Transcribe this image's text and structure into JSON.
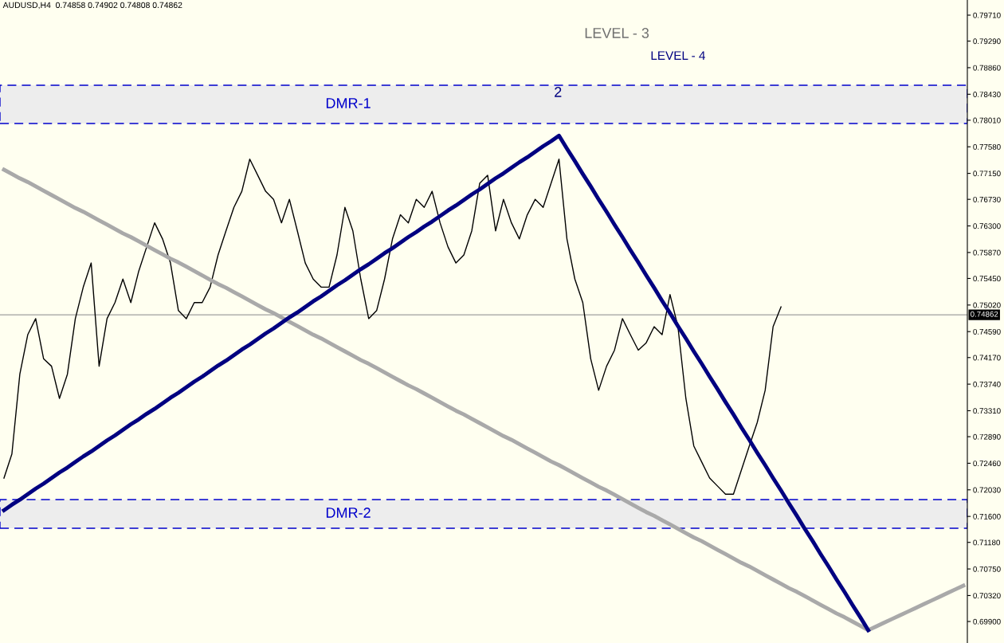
{
  "chart_data": {
    "type": "line",
    "title": "AUDUSD,H4  0.74858 0.74902 0.74808 0.74862",
    "categories": [
      null,
      null,
      null,
      null,
      null,
      null,
      null,
      null,
      null,
      null,
      null,
      null,
      null,
      null,
      null,
      null,
      null,
      null,
      null,
      null,
      null,
      null,
      null,
      null,
      null,
      null,
      null,
      null,
      null,
      null,
      null,
      null,
      null,
      null,
      null,
      null,
      null,
      null,
      null,
      null,
      null,
      null,
      null,
      null,
      null,
      null,
      null,
      null,
      null,
      null,
      null,
      null,
      null,
      null,
      null,
      null,
      null,
      null,
      null,
      null,
      null,
      null,
      null,
      null,
      null,
      null,
      null,
      null,
      null,
      null,
      null,
      null,
      null,
      null,
      null,
      null,
      null,
      null,
      null,
      null,
      null,
      null,
      null,
      null,
      null,
      null,
      null,
      null,
      null,
      null,
      null,
      null,
      null,
      null,
      null,
      null,
      null,
      null,
      null,
      null,
      null,
      null,
      null,
      null,
      null,
      null,
      null,
      null,
      null,
      null,
      null,
      null,
      null,
      null,
      null,
      null,
      null,
      null,
      null,
      null,
      null,
      null
    ],
    "series": [
      {
        "color": "#a9a9a9",
        "values": [
          0.7721,
          0.7714,
          0.7707,
          0.7701,
          0.7694,
          0.7687,
          0.768,
          0.7673,
          0.7666,
          0.7659,
          0.7653,
          0.7646,
          0.7639,
          0.7632,
          0.7625,
          0.7618,
          0.7612,
          0.7605,
          0.7598,
          0.7591,
          0.7584,
          0.7577,
          0.7571,
          0.7564,
          0.7557,
          0.755,
          0.7543,
          0.7536,
          0.753,
          0.7523,
          0.7516,
          0.7509,
          0.7502,
          0.7495,
          0.7489,
          0.7482,
          0.7475,
          0.7468,
          0.7461,
          0.7454,
          0.7448,
          0.7441,
          0.7434,
          0.7427,
          0.742,
          0.7413,
          0.7407,
          0.74,
          0.7393,
          0.7386,
          0.7379,
          0.7372,
          0.7366,
          0.7359,
          0.7352,
          0.7345,
          0.7338,
          0.7331,
          0.7325,
          0.7318,
          0.7311,
          0.7304,
          0.7297,
          0.729,
          0.7284,
          0.7277,
          0.727,
          0.7263,
          0.7256,
          0.7249,
          0.7243,
          0.7236,
          0.7229,
          0.7222,
          0.7215,
          0.7208,
          0.7202,
          0.7195,
          0.7188,
          0.7181,
          0.7174,
          0.7167,
          0.7161,
          0.7154,
          0.7147,
          0.714,
          0.7133,
          0.7126,
          0.712,
          0.7113,
          0.7106,
          0.7099,
          0.7092,
          0.7085,
          0.7079,
          0.7072,
          0.7065,
          0.7058,
          0.7051,
          0.7044,
          0.7038,
          0.7031,
          0.7024,
          0.7017,
          0.701,
          0.7003,
          0.6997,
          0.699,
          0.6983,
          0.6976,
          0.6982,
          0.6988,
          0.6994,
          0.7,
          0.7006,
          0.7012,
          0.7018,
          0.7024,
          0.703,
          0.7036,
          0.7042,
          0.7048
        ]
      },
      {
        "color": "#000000",
        "values": [
          0.7222,
          0.7261,
          0.739,
          0.7454,
          0.748,
          0.7415,
          0.7403,
          0.7351,
          0.739,
          0.748,
          0.7531,
          0.757,
          0.7403,
          0.748,
          0.7506,
          0.7544,
          0.7506,
          0.7557,
          0.7596,
          0.7635,
          0.7609,
          0.757,
          0.7493,
          0.748,
          0.7506,
          0.7506,
          0.7531,
          0.7583,
          0.7622,
          0.766,
          0.7686,
          0.7738,
          0.7712,
          0.7686,
          0.7673,
          0.7635,
          0.7673,
          0.7622,
          0.757,
          0.7544,
          0.7531,
          0.7531,
          0.7583,
          0.766,
          0.7622,
          0.7544,
          0.748,
          0.7493,
          0.7544,
          0.7609,
          0.7648,
          0.7635,
          0.7673,
          0.766,
          0.7686,
          0.7635,
          0.7596,
          0.757,
          0.7583,
          0.7622,
          0.7699,
          0.7712,
          0.7622,
          0.7673,
          0.7635,
          0.7609,
          0.7648,
          0.7673,
          0.766,
          0.7699,
          0.7738,
          0.7609,
          0.7544,
          0.7506,
          0.7415,
          0.7364,
          0.7403,
          0.7429,
          0.748,
          0.7454,
          0.7429,
          0.7441,
          0.7467,
          0.7454,
          0.7519,
          0.7467,
          0.7351,
          0.7274,
          0.7248,
          0.7222,
          0.7209,
          0.7196,
          0.7196,
          0.7235,
          0.7274,
          0.7312,
          0.7364,
          0.7467,
          0.7499,
          null,
          null,
          null,
          null,
          null,
          null,
          null,
          null,
          null,
          null,
          null,
          null,
          null,
          null,
          null,
          null,
          null,
          null,
          null,
          null,
          null,
          null,
          null
        ]
      },
      {
        "color": "#000080",
        "values": [
          0.717,
          0.7179,
          0.7187,
          0.7196,
          0.7205,
          0.7213,
          0.7222,
          0.7231,
          0.7239,
          0.7248,
          0.7257,
          0.7265,
          0.7274,
          0.7283,
          0.7291,
          0.73,
          0.7309,
          0.7317,
          0.7326,
          0.7334,
          0.7343,
          0.7352,
          0.736,
          0.7369,
          0.7378,
          0.7386,
          0.7395,
          0.7404,
          0.7412,
          0.7421,
          0.743,
          0.7438,
          0.7447,
          0.7456,
          0.7464,
          0.7473,
          0.7482,
          0.749,
          0.7499,
          0.7508,
          0.7516,
          0.7525,
          0.7534,
          0.7542,
          0.7551,
          0.756,
          0.7568,
          0.7577,
          0.7586,
          0.7594,
          0.7603,
          0.7612,
          0.762,
          0.7629,
          0.7637,
          0.7646,
          0.7655,
          0.7663,
          0.7672,
          0.7681,
          0.7689,
          0.7698,
          0.7707,
          0.7715,
          0.7724,
          0.7733,
          0.7741,
          0.775,
          0.7759,
          0.7767,
          0.7776,
          0.7755,
          0.7735,
          0.7714,
          0.7694,
          0.7673,
          0.7653,
          0.7632,
          0.7612,
          0.7591,
          0.7571,
          0.755,
          0.753,
          0.7509,
          0.7489,
          0.7468,
          0.7448,
          0.7427,
          0.7407,
          0.7386,
          0.7366,
          0.7345,
          0.7325,
          0.7304,
          0.7284,
          0.7263,
          0.7243,
          0.7222,
          0.7202,
          0.7181,
          0.7161,
          0.714,
          0.712,
          0.7099,
          0.7079,
          0.7058,
          0.7038,
          0.7017,
          0.6997,
          0.6976,
          null,
          null,
          null,
          null,
          null,
          null,
          null,
          null,
          null,
          null,
          null,
          null
        ]
      }
    ],
    "ylim": [
      0.69552,
      0.79955
    ],
    "yticks": [
      {
        "value": 0.7971,
        "label": "0.79710"
      },
      {
        "value": 0.7929,
        "label": "0.79290"
      },
      {
        "value": 0.7886,
        "label": "0.78860"
      },
      {
        "value": 0.7843,
        "label": "0.78430"
      },
      {
        "value": 0.7801,
        "label": "0.78010"
      },
      {
        "value": 0.7758,
        "label": "0.77580"
      },
      {
        "value": 0.7715,
        "label": "0.77150"
      },
      {
        "value": 0.7673,
        "label": "0.76730"
      },
      {
        "value": 0.763,
        "label": "0.76300"
      },
      {
        "value": 0.7587,
        "label": "0.75870"
      },
      {
        "value": 0.7545,
        "label": "0.75450"
      },
      {
        "value": 0.7502,
        "label": "0.75020"
      },
      {
        "value": 0.7459,
        "label": "0.74590"
      },
      {
        "value": 0.7417,
        "label": "0.74170"
      },
      {
        "value": 0.7374,
        "label": "0.73740"
      },
      {
        "value": 0.7331,
        "label": "0.73310"
      },
      {
        "value": 0.7289,
        "label": "0.72890"
      },
      {
        "value": 0.7246,
        "label": "0.72460"
      },
      {
        "value": 0.7203,
        "label": "0.72030"
      },
      {
        "value": 0.716,
        "label": "0.71600"
      },
      {
        "value": 0.7118,
        "label": "0.71180"
      },
      {
        "value": 0.7075,
        "label": "0.70750"
      },
      {
        "value": 0.7032,
        "label": "0.70320"
      },
      {
        "value": 0.699,
        "label": "0.69900"
      }
    ],
    "ref_lines": [
      {
        "axis": "y",
        "value": 0.74862,
        "label": "0.74862",
        "color": "#a0a0a0"
      }
    ],
    "bands": [
      {
        "axis": "y",
        "from": 0.77957,
        "to": 0.78576,
        "label": "DMR-1",
        "color": "#0000cc"
      },
      {
        "axis": "y",
        "from": 0.71408,
        "to": 0.71872,
        "label": "DMR-2",
        "color": "#0000cc"
      }
    ],
    "annotations": [
      "LEVEL - 3",
      "LEVEL - 4",
      "2"
    ],
    "tick_labels": "y",
    "grid": false,
    "marker": "none",
    "line_style": "solid"
  }
}
